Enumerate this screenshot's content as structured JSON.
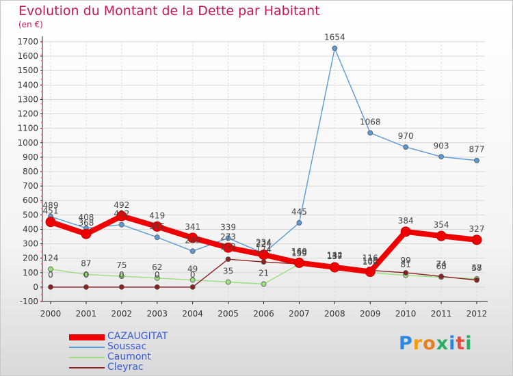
{
  "title": "Evolution du Montant de la Dette par Habitant",
  "unit_label": "(en €)",
  "logo_text": "Proxiti",
  "colors": {
    "title": "#c2185b",
    "legend_text": "#3a5bd9",
    "grid": "#d7d7d7",
    "axis": "#222222"
  },
  "chart_data": {
    "type": "line",
    "title": "Evolution du Montant de la Dette par Habitant",
    "ylabel": "(en €)",
    "xlabel": "",
    "ylim": [
      -100,
      1700
    ],
    "grid": true,
    "legend_position": "bottom-left",
    "x": [
      "2000",
      "2001",
      "2002",
      "2003",
      "2004",
      "2005",
      "2006",
      "2007",
      "2008",
      "2009",
      "2010",
      "2011",
      "2012"
    ],
    "yticks": [
      -100,
      0,
      100,
      200,
      300,
      400,
      500,
      600,
      700,
      800,
      900,
      1000,
      1100,
      1200,
      1300,
      1400,
      1500,
      1600,
      1700
    ],
    "series": [
      {
        "name": "CAZAUGITAT",
        "color": "#ee0000",
        "values": [
          451,
          368,
          492,
          419,
          341,
          273,
          224,
          168,
          137,
          106,
          384,
          354,
          327
        ]
      },
      {
        "name": "Soussac",
        "color": "#5b9bd5",
        "values": [
          489,
          408,
          432,
          345,
          249,
          339,
          234,
          445,
          1654,
          1068,
          970,
          903,
          877
        ]
      },
      {
        "name": "Caumont",
        "color": "#99e07a",
        "values": [
          124,
          87,
          75,
          62,
          49,
          35,
          21,
          159,
          144,
          100,
          81,
          68,
          57
        ]
      },
      {
        "name": "Cleyrac",
        "color": "#8b2020",
        "values": [
          0,
          0,
          0,
          0,
          0,
          193,
          174,
          160,
          132,
          116,
          99,
          74,
          48
        ]
      }
    ]
  }
}
